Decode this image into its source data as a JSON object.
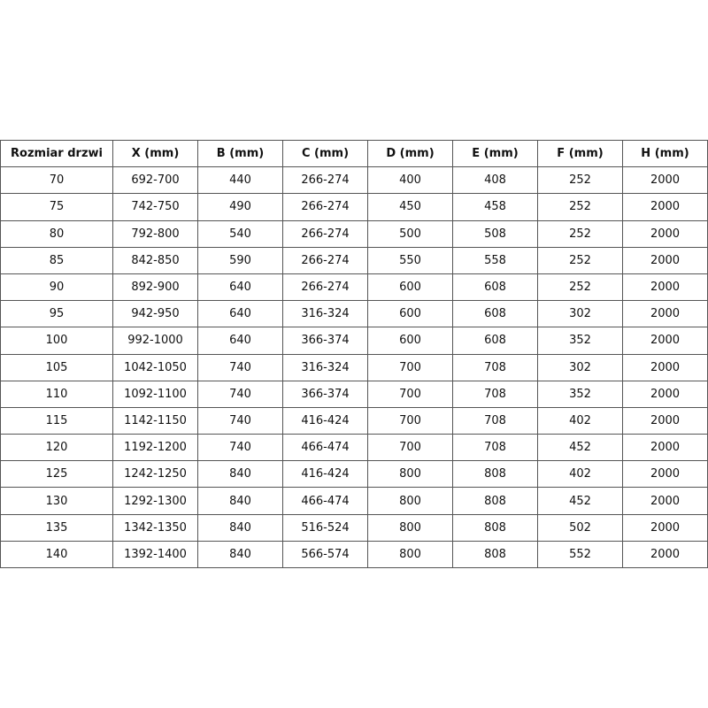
{
  "table": {
    "headers": [
      "Rozmiar drzwi",
      "X (mm)",
      "B (mm)",
      "C (mm)",
      "D (mm)",
      "E (mm)",
      "F (mm)",
      "H (mm)"
    ],
    "rows": [
      [
        "70",
        "692-700",
        "440",
        "266-274",
        "400",
        "408",
        "252",
        "2000"
      ],
      [
        "75",
        "742-750",
        "490",
        "266-274",
        "450",
        "458",
        "252",
        "2000"
      ],
      [
        "80",
        "792-800",
        "540",
        "266-274",
        "500",
        "508",
        "252",
        "2000"
      ],
      [
        "85",
        "842-850",
        "590",
        "266-274",
        "550",
        "558",
        "252",
        "2000"
      ],
      [
        "90",
        "892-900",
        "640",
        "266-274",
        "600",
        "608",
        "252",
        "2000"
      ],
      [
        "95",
        "942-950",
        "640",
        "316-324",
        "600",
        "608",
        "302",
        "2000"
      ],
      [
        "100",
        "992-1000",
        "640",
        "366-374",
        "600",
        "608",
        "352",
        "2000"
      ],
      [
        "105",
        "1042-1050",
        "740",
        "316-324",
        "700",
        "708",
        "302",
        "2000"
      ],
      [
        "110",
        "1092-1100",
        "740",
        "366-374",
        "700",
        "708",
        "352",
        "2000"
      ],
      [
        "115",
        "1142-1150",
        "740",
        "416-424",
        "700",
        "708",
        "402",
        "2000"
      ],
      [
        "120",
        "1192-1200",
        "740",
        "466-474",
        "700",
        "708",
        "452",
        "2000"
      ],
      [
        "125",
        "1242-1250",
        "840",
        "416-424",
        "800",
        "808",
        "402",
        "2000"
      ],
      [
        "130",
        "1292-1300",
        "840",
        "466-474",
        "800",
        "808",
        "452",
        "2000"
      ],
      [
        "135",
        "1342-1350",
        "840",
        "516-524",
        "800",
        "808",
        "502",
        "2000"
      ],
      [
        "140",
        "1392-1400",
        "840",
        "566-574",
        "800",
        "808",
        "552",
        "2000"
      ]
    ]
  }
}
